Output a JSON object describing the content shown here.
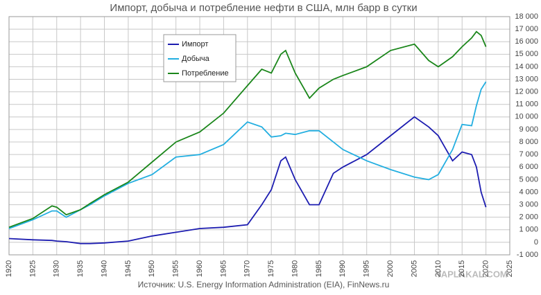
{
  "chart_data": {
    "type": "line",
    "title": "Импорт, добыча и потребление нефти в США, млн барр в сутки",
    "source": "Источник: U.S. Energy Information Administration (EIA), FinNews.ru",
    "watermark": "YAPLAKAL.COM",
    "x": [
      1920,
      1925,
      1929,
      1930,
      1932,
      1935,
      1937,
      1940,
      1945,
      1950,
      1955,
      1960,
      1965,
      1970,
      1973,
      1975,
      1977,
      1978,
      1980,
      1983,
      1985,
      1988,
      1990,
      1995,
      2000,
      2005,
      2008,
      2010,
      2013,
      2015,
      2017,
      2018,
      2019,
      2020
    ],
    "series": [
      {
        "name": "Импорт",
        "color": "#1c1cb0",
        "values": [
          300,
          200,
          150,
          100,
          50,
          -100,
          -100,
          -50,
          100,
          500,
          800,
          1100,
          1200,
          1400,
          3000,
          4200,
          6500,
          6800,
          5000,
          3000,
          3000,
          5500,
          6000,
          7000,
          8500,
          10000,
          9200,
          8500,
          6500,
          7200,
          7000,
          6000,
          4000,
          2800
        ]
      },
      {
        "name": "Добыча",
        "color": "#22aee0",
        "values": [
          1100,
          1800,
          2500,
          2500,
          2000,
          2600,
          3000,
          3700,
          4700,
          5400,
          6800,
          7000,
          7800,
          9600,
          9200,
          8400,
          8500,
          8700,
          8600,
          8900,
          8900,
          8000,
          7400,
          6500,
          5800,
          5200,
          5000,
          5400,
          7400,
          9400,
          9300,
          10900,
          12200,
          12800
        ]
      },
      {
        "name": "Потребление",
        "color": "#1a861a",
        "values": [
          1200,
          1900,
          2900,
          2800,
          2200,
          2600,
          3100,
          3800,
          4800,
          6400,
          8000,
          8800,
          10300,
          12500,
          13800,
          13500,
          15000,
          15300,
          13500,
          11500,
          12300,
          13000,
          13300,
          14000,
          15300,
          15800,
          14500,
          14000,
          14800,
          15600,
          16300,
          16800,
          16500,
          15600
        ]
      }
    ],
    "xlim": [
      1920,
      2025
    ],
    "xticks": [
      1920,
      1925,
      1930,
      1935,
      1940,
      1945,
      1950,
      1955,
      1960,
      1965,
      1970,
      1975,
      1980,
      1985,
      1990,
      1995,
      2000,
      2005,
      2010,
      2015,
      2020,
      2025
    ],
    "ylim": [
      -1000,
      18000
    ],
    "yticks": [
      {
        "value": -1000,
        "label": "-1 000"
      },
      0,
      {
        "value": 1000,
        "label": "1 000"
      },
      {
        "value": 2000,
        "label": "2 000"
      },
      {
        "value": 3000,
        "label": "3 000"
      },
      {
        "value": 4000,
        "label": "4 000"
      },
      {
        "value": 5000,
        "label": "5 000"
      },
      {
        "value": 6000,
        "label": "6 000"
      },
      {
        "value": 7000,
        "label": "7 000"
      },
      {
        "value": 8000,
        "label": "8 000"
      },
      {
        "value": 9000,
        "label": "9 000"
      },
      {
        "value": 10000,
        "label": "10 000"
      },
      {
        "value": 11000,
        "label": "11 000"
      },
      {
        "value": 12000,
        "label": "12 000"
      },
      {
        "value": 13000,
        "label": "13 000"
      },
      {
        "value": 14000,
        "label": "14 000"
      },
      {
        "value": 15000,
        "label": "15 000"
      },
      {
        "value": 16000,
        "label": "16 000"
      },
      {
        "value": 17000,
        "label": "17 000"
      },
      {
        "value": 18000,
        "label": "18 000"
      }
    ],
    "grid": true,
    "legend": "upper left"
  }
}
